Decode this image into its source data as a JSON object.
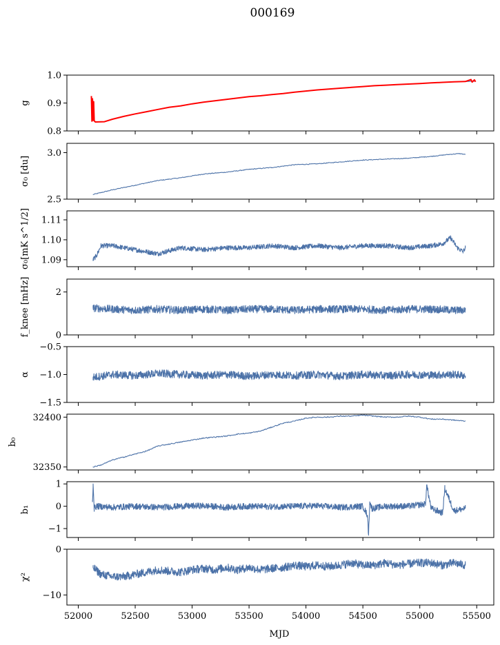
{
  "figure": {
    "title": "000169",
    "xlabel": "MJD"
  },
  "colors": {
    "series": "#4c72a8",
    "highlight": "#ff0000",
    "axes": "#000000"
  },
  "chart_data": [
    {
      "type": "line",
      "ylabel": "g",
      "xlim": [
        51900,
        55650
      ],
      "ylim": [
        0.8,
        1.0
      ],
      "yticks": [
        "0.8",
        "0.9",
        "1.0"
      ],
      "series": [
        {
          "x": [
            52150,
            52230,
            52300,
            52400,
            52500,
            52600,
            52700,
            52800,
            52900,
            53000,
            53100,
            53200,
            53300,
            53400,
            53500,
            53600,
            53700,
            53800,
            53900,
            54000,
            54100,
            54200,
            54300,
            54400,
            54500,
            54600,
            54700,
            54800,
            54900,
            55000,
            55100,
            55200,
            55300,
            55400,
            55480
          ],
          "y": [
            0.833,
            0.833,
            0.842,
            0.852,
            0.861,
            0.869,
            0.877,
            0.885,
            0.89,
            0.897,
            0.903,
            0.908,
            0.913,
            0.918,
            0.923,
            0.926,
            0.93,
            0.934,
            0.939,
            0.943,
            0.947,
            0.95,
            0.953,
            0.956,
            0.959,
            0.962,
            0.964,
            0.966,
            0.968,
            0.97,
            0.972,
            0.974,
            0.976,
            0.977,
            0.978
          ]
        },
        {
          "x": [
            52115,
            52120,
            52125,
            52130,
            52135,
            52140,
            52150,
            52230,
            52300,
            52400,
            52500,
            52600,
            52700,
            52800,
            52900,
            53000,
            53100,
            53200,
            53300,
            53400,
            53500,
            53600,
            53700,
            53800,
            53900,
            54000,
            54100,
            54200,
            54300,
            54400,
            54500,
            54600,
            54700,
            54800,
            54900,
            55000,
            55100,
            55200,
            55300,
            55400,
            55450,
            55460,
            55480,
            55490
          ],
          "y": [
            0.925,
            0.835,
            0.915,
            0.838,
            0.905,
            0.836,
            0.832,
            0.833,
            0.842,
            0.852,
            0.861,
            0.869,
            0.877,
            0.885,
            0.89,
            0.897,
            0.903,
            0.908,
            0.913,
            0.918,
            0.923,
            0.926,
            0.93,
            0.934,
            0.939,
            0.943,
            0.947,
            0.95,
            0.953,
            0.956,
            0.959,
            0.962,
            0.964,
            0.966,
            0.968,
            0.97,
            0.972,
            0.974,
            0.976,
            0.977,
            0.984,
            0.975,
            0.983,
            0.976
          ]
        }
      ]
    },
    {
      "type": "line",
      "ylabel": "σ₀ [du]",
      "xlim": [
        51900,
        55650
      ],
      "ylim": [
        2.5,
        3.1
      ],
      "yticks": [
        "2.5",
        "3.0"
      ],
      "series": [
        {
          "x": [
            52130,
            52300,
            52500,
            52700,
            52900,
            53100,
            53300,
            53500,
            53700,
            53900,
            54100,
            54300,
            54500,
            54700,
            54900,
            55100,
            55250,
            55350,
            55400
          ],
          "y": [
            2.55,
            2.6,
            2.65,
            2.7,
            2.73,
            2.77,
            2.79,
            2.82,
            2.84,
            2.87,
            2.88,
            2.9,
            2.92,
            2.93,
            2.94,
            2.96,
            2.98,
            2.99,
            2.98
          ]
        }
      ]
    },
    {
      "type": "line",
      "ylabel": "σ₀[mK s^1/2]",
      "xlim": [
        51900,
        55650
      ],
      "ylim": [
        1.0865,
        1.1145
      ],
      "yticks": [
        "1.09",
        "1.10",
        "1.11"
      ],
      "series": [
        {
          "x": [
            52130,
            52160,
            52200,
            52300,
            52500,
            52700,
            52900,
            53100,
            53300,
            53500,
            53700,
            53900,
            54100,
            54300,
            54500,
            54700,
            54900,
            55100,
            55200,
            55270,
            55330,
            55380,
            55400
          ],
          "y": [
            1.09,
            1.092,
            1.097,
            1.097,
            1.095,
            1.093,
            1.096,
            1.095,
            1.096,
            1.096,
            1.097,
            1.096,
            1.097,
            1.096,
            1.097,
            1.097,
            1.096,
            1.097,
            1.098,
            1.101,
            1.096,
            1.094,
            1.096
          ]
        }
      ]
    },
    {
      "type": "line",
      "ylabel": "f_knee [mHz]",
      "xlim": [
        51900,
        55650
      ],
      "ylim": [
        0,
        2.6
      ],
      "yticks": [
        "0",
        "2"
      ],
      "series": [
        {
          "x": [
            52130,
            52300,
            52500,
            52700,
            52900,
            53100,
            53300,
            53500,
            53700,
            53900,
            54100,
            54300,
            54500,
            54700,
            54900,
            55100,
            55300,
            55400
          ],
          "y": [
            1.25,
            1.2,
            1.15,
            1.2,
            1.15,
            1.2,
            1.15,
            1.2,
            1.2,
            1.15,
            1.2,
            1.2,
            1.2,
            1.15,
            1.2,
            1.2,
            1.15,
            1.15
          ]
        }
      ]
    },
    {
      "type": "line",
      "ylabel": "α",
      "xlim": [
        51900,
        55650
      ],
      "ylim": [
        -1.5,
        -0.5
      ],
      "yticks": [
        "−1.5",
        "−1.0",
        "−0.5"
      ],
      "series": [
        {
          "x": [
            52130,
            52300,
            52500,
            52700,
            52900,
            53100,
            53300,
            53500,
            53700,
            53900,
            54100,
            54300,
            54500,
            54700,
            54900,
            55100,
            55300,
            55400
          ],
          "y": [
            -1.05,
            -1.0,
            -1.02,
            -0.98,
            -1.0,
            -1.02,
            -1.0,
            -1.03,
            -1.0,
            -1.02,
            -1.0,
            -1.03,
            -1.0,
            -1.02,
            -1.0,
            -1.01,
            -1.0,
            -1.02
          ]
        }
      ]
    },
    {
      "type": "line",
      "ylabel": "b₀",
      "xlim": [
        51900,
        55650
      ],
      "ylim": [
        32347,
        32403
      ],
      "yticks": [
        "32350",
        "32400"
      ],
      "series": [
        {
          "x": [
            52130,
            52200,
            52300,
            52400,
            52500,
            52600,
            52700,
            52800,
            52900,
            53000,
            53100,
            53200,
            53300,
            53400,
            53500,
            53600,
            53700,
            53800,
            53900,
            54000,
            54100,
            54200,
            54300,
            54400,
            54500,
            54600,
            54700,
            54800,
            54900,
            55000,
            55100,
            55200,
            55300,
            55400
          ],
          "y": [
            32350,
            32352,
            32357,
            32360,
            32363,
            32366,
            32371,
            32373,
            32375,
            32377,
            32379,
            32380,
            32381,
            32383,
            32384,
            32386,
            32390,
            32394,
            32396,
            32399,
            32400,
            32400,
            32401,
            32401,
            32402,
            32401,
            32400,
            32400,
            32401,
            32400,
            32398,
            32398,
            32397,
            32396
          ]
        }
      ]
    },
    {
      "type": "line",
      "ylabel": "b₁",
      "xlim": [
        51900,
        55650
      ],
      "ylim": [
        -1.4,
        1.1
      ],
      "yticks": [
        "−1",
        "0",
        "1"
      ],
      "series": [
        {
          "x": [
            52125,
            52130,
            52140,
            52160,
            52300,
            52500,
            52700,
            52900,
            53100,
            53300,
            53500,
            53700,
            53900,
            54100,
            54300,
            54500,
            54540,
            54550,
            54560,
            54580,
            54700,
            54900,
            55050,
            55060,
            55100,
            55200,
            55220,
            55300,
            55400
          ],
          "y": [
            0.2,
            1.0,
            -0.1,
            0.0,
            -0.05,
            0.0,
            -0.05,
            0.0,
            0.02,
            -0.05,
            0.0,
            -0.02,
            0.0,
            0.02,
            -0.05,
            0.0,
            -0.4,
            -1.3,
            0.2,
            -0.1,
            0.0,
            0.0,
            0.1,
            0.95,
            -0.1,
            -0.3,
            0.8,
            -0.2,
            -0.1
          ]
        }
      ]
    },
    {
      "type": "line",
      "ylabel": "χ²",
      "xlim": [
        51900,
        55650
      ],
      "ylim": [
        -12.2,
        0
      ],
      "yticks": [
        "−10",
        "0"
      ],
      "series": [
        {
          "x": [
            52130,
            52200,
            52300,
            52400,
            52500,
            52600,
            52700,
            52800,
            52900,
            53000,
            53100,
            53200,
            53300,
            53400,
            53500,
            53600,
            53700,
            53800,
            53900,
            54000,
            54100,
            54200,
            54300,
            54400,
            54500,
            54600,
            54700,
            54800,
            54900,
            55000,
            55100,
            55200,
            55300,
            55400
          ],
          "y": [
            -4.0,
            -5.5,
            -6.0,
            -6.0,
            -5.5,
            -5.0,
            -4.5,
            -4.8,
            -5.0,
            -4.5,
            -4.2,
            -4.5,
            -4.0,
            -4.5,
            -4.0,
            -4.5,
            -4.2,
            -4.0,
            -3.5,
            -3.8,
            -3.5,
            -3.8,
            -3.5,
            -3.0,
            -3.5,
            -3.5,
            -3.0,
            -3.5,
            -3.2,
            -3.0,
            -3.0,
            -3.5,
            -3.0,
            -3.5
          ]
        }
      ]
    }
  ],
  "xaxis": {
    "ticks": [
      "52000",
      "52500",
      "53000",
      "53500",
      "54000",
      "54500",
      "55000",
      "55500"
    ]
  }
}
